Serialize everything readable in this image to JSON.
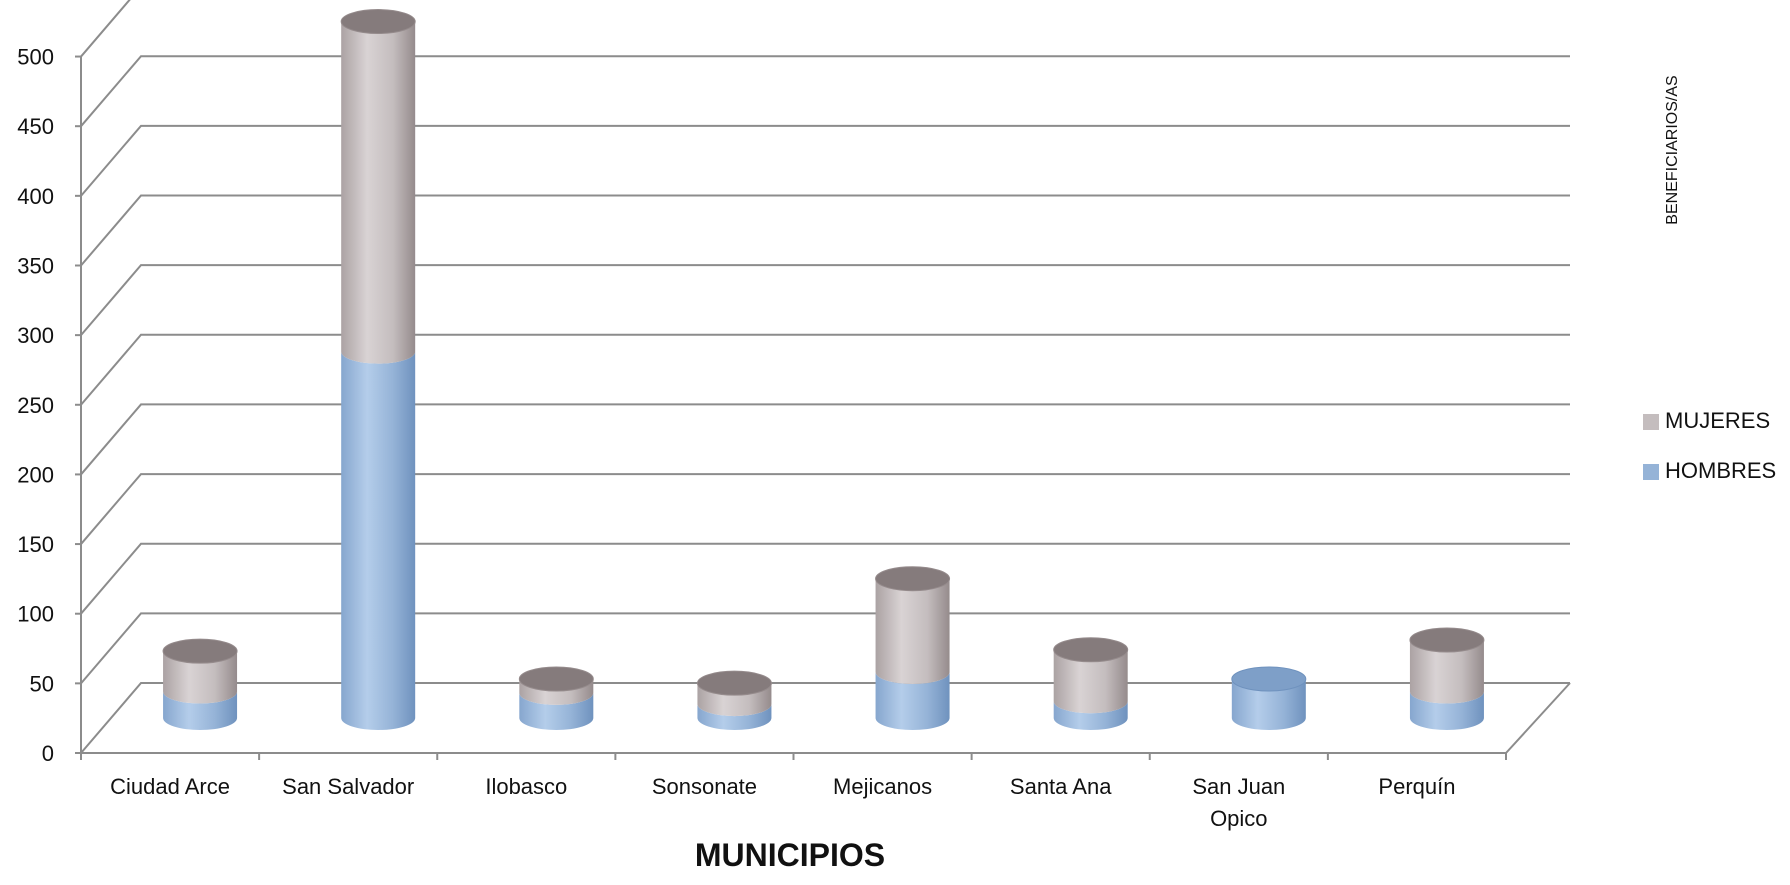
{
  "chart_data": {
    "type": "bar",
    "stacked": true,
    "style": "3d-cylinder",
    "categories": [
      "Ciudad Arce",
      "San Salvador",
      "Ilobasco",
      "Sonsonate",
      "Mejicanos",
      "Santa Ana",
      "San Juan Opico",
      "Perquín"
    ],
    "category_lines": [
      [
        "Ciudad Arce"
      ],
      [
        "San Salvador"
      ],
      [
        "Ilobasco"
      ],
      [
        "Sonsonate"
      ],
      [
        "Mejicanos"
      ],
      [
        "Santa Ana"
      ],
      [
        "San Juan",
        "Opico"
      ],
      [
        "Perquín"
      ]
    ],
    "series": [
      {
        "name": "HOMBRES",
        "color": "#95B3D7",
        "values": [
          19,
          263,
          18,
          10,
          33,
          12,
          28,
          19
        ]
      },
      {
        "name": "MUJERES",
        "color": "#C4BDBE",
        "values": [
          29,
          237,
          10,
          15,
          67,
          37,
          0,
          37
        ]
      }
    ],
    "xlabel": "MUNICIPIOS",
    "ylabel": "BENEFICIARIOS/AS",
    "ylim": [
      0,
      500
    ],
    "yticks": [
      "0",
      "50",
      "100",
      "150",
      "200",
      "250",
      "300",
      "350",
      "400",
      "450",
      "500"
    ],
    "grid": true,
    "legend_position": "right",
    "legend_order": [
      "MUJERES",
      "HOMBRES"
    ]
  }
}
